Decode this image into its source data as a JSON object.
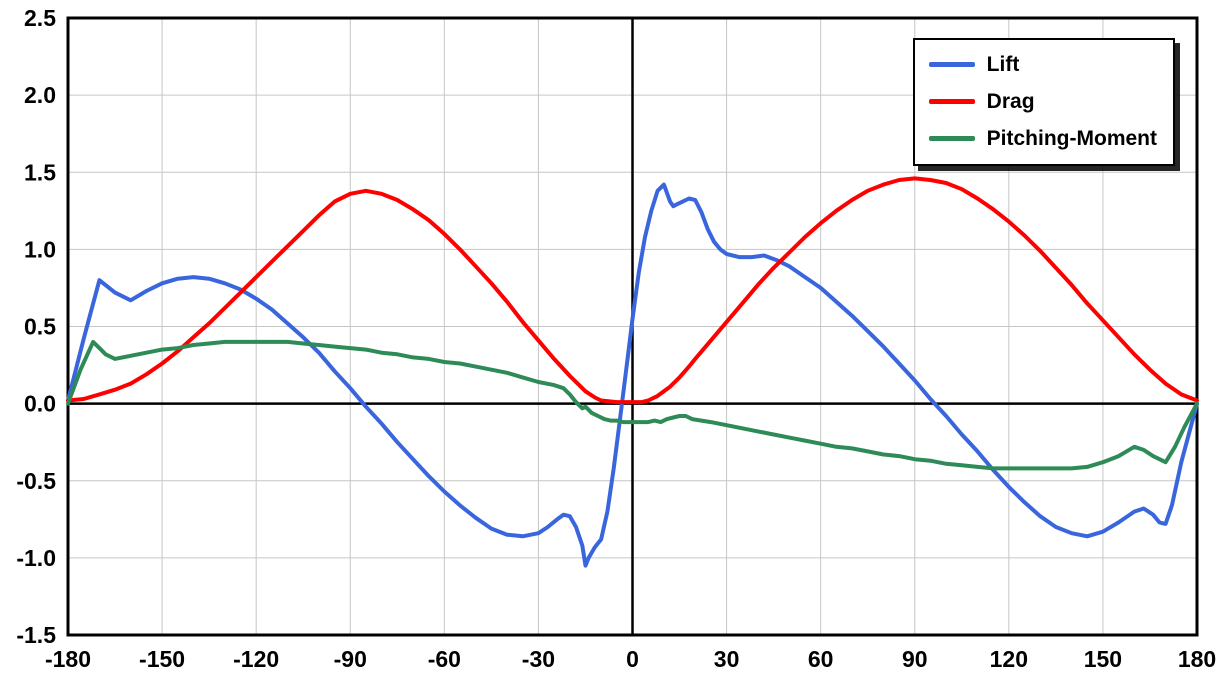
{
  "colors": {
    "grid": "#c6c6c6",
    "axis": "#000000",
    "background": "#ffffff",
    "lift": "#3A66DD",
    "drag": "#FF0000",
    "pitching_moment": "#2E8B57"
  },
  "chart_data": {
    "type": "line",
    "title": "",
    "xlabel": "",
    "ylabel": "",
    "xlim": [
      -180,
      180
    ],
    "ylim": [
      -1.5,
      2.5
    ],
    "x_ticks": [
      -180,
      -150,
      -120,
      -90,
      -60,
      -30,
      0,
      30,
      60,
      90,
      120,
      150,
      180
    ],
    "y_ticks": [
      -1.5,
      -1.0,
      -0.5,
      0.0,
      0.5,
      1.0,
      1.5,
      2.0,
      2.5
    ],
    "grid": true,
    "legend_position": "top-right",
    "series": [
      {
        "name": "Lift",
        "color": "#3A66DD",
        "x": [
          -180,
          -175,
          -170,
          -165,
          -160,
          -155,
          -150,
          -145,
          -140,
          -135,
          -130,
          -125,
          -120,
          -115,
          -110,
          -105,
          -100,
          -95,
          -90,
          -85,
          -80,
          -75,
          -70,
          -65,
          -60,
          -55,
          -50,
          -45,
          -40,
          -35,
          -30,
          -27,
          -24,
          -22,
          -20,
          -18,
          -16,
          -15,
          -14,
          -12,
          -10,
          -8,
          -6,
          -4,
          -2,
          0,
          2,
          4,
          6,
          8,
          10,
          12,
          13,
          14,
          16,
          18,
          20,
          22,
          24,
          26,
          28,
          30,
          34,
          38,
          42,
          46,
          50,
          55,
          60,
          65,
          70,
          75,
          80,
          85,
          90,
          95,
          100,
          105,
          110,
          115,
          120,
          125,
          130,
          135,
          140,
          145,
          150,
          155,
          160,
          163,
          166,
          168,
          170,
          172,
          175,
          180
        ],
        "y": [
          0.02,
          0.42,
          0.8,
          0.72,
          0.67,
          0.73,
          0.78,
          0.81,
          0.82,
          0.81,
          0.78,
          0.74,
          0.68,
          0.61,
          0.52,
          0.43,
          0.33,
          0.21,
          0.1,
          -0.02,
          -0.13,
          -0.25,
          -0.36,
          -0.47,
          -0.57,
          -0.66,
          -0.74,
          -0.81,
          -0.85,
          -0.86,
          -0.84,
          -0.8,
          -0.75,
          -0.72,
          -0.73,
          -0.8,
          -0.92,
          -1.05,
          -1.0,
          -0.93,
          -0.88,
          -0.7,
          -0.42,
          -0.1,
          0.22,
          0.55,
          0.85,
          1.08,
          1.25,
          1.38,
          1.42,
          1.31,
          1.28,
          1.29,
          1.31,
          1.33,
          1.32,
          1.24,
          1.13,
          1.05,
          1.0,
          0.97,
          0.95,
          0.95,
          0.96,
          0.93,
          0.89,
          0.82,
          0.75,
          0.66,
          0.57,
          0.47,
          0.37,
          0.26,
          0.15,
          0.03,
          -0.08,
          -0.2,
          -0.31,
          -0.43,
          -0.54,
          -0.64,
          -0.73,
          -0.8,
          -0.84,
          -0.86,
          -0.83,
          -0.77,
          -0.7,
          -0.68,
          -0.72,
          -0.77,
          -0.78,
          -0.66,
          -0.38,
          0.0
        ]
      },
      {
        "name": "Drag",
        "color": "#FF0000",
        "x": [
          -180,
          -175,
          -170,
          -165,
          -160,
          -155,
          -150,
          -145,
          -140,
          -135,
          -130,
          -125,
          -120,
          -115,
          -110,
          -105,
          -100,
          -95,
          -90,
          -85,
          -80,
          -75,
          -70,
          -65,
          -60,
          -55,
          -50,
          -45,
          -40,
          -35,
          -30,
          -25,
          -20,
          -15,
          -12,
          -10,
          -5,
          0,
          3,
          5,
          8,
          10,
          12,
          15,
          18,
          20,
          25,
          30,
          35,
          40,
          45,
          50,
          55,
          60,
          65,
          70,
          75,
          80,
          85,
          90,
          95,
          100,
          105,
          110,
          115,
          120,
          125,
          130,
          135,
          140,
          145,
          150,
          155,
          160,
          165,
          170,
          175,
          180
        ],
        "y": [
          0.02,
          0.03,
          0.06,
          0.09,
          0.13,
          0.19,
          0.26,
          0.34,
          0.43,
          0.52,
          0.62,
          0.72,
          0.82,
          0.92,
          1.02,
          1.12,
          1.22,
          1.31,
          1.36,
          1.38,
          1.36,
          1.32,
          1.26,
          1.19,
          1.1,
          1.0,
          0.89,
          0.78,
          0.66,
          0.53,
          0.41,
          0.29,
          0.18,
          0.08,
          0.04,
          0.02,
          0.01,
          0.01,
          0.01,
          0.02,
          0.05,
          0.08,
          0.11,
          0.17,
          0.24,
          0.29,
          0.41,
          0.53,
          0.65,
          0.77,
          0.88,
          0.98,
          1.08,
          1.17,
          1.25,
          1.32,
          1.38,
          1.42,
          1.45,
          1.46,
          1.45,
          1.43,
          1.39,
          1.33,
          1.26,
          1.18,
          1.09,
          0.99,
          0.88,
          0.77,
          0.65,
          0.54,
          0.43,
          0.32,
          0.22,
          0.13,
          0.06,
          0.02
        ]
      },
      {
        "name": "Pitching-Moment",
        "color": "#2E8B57",
        "x": [
          -180,
          -176,
          -172,
          -170,
          -168,
          -165,
          -160,
          -155,
          -150,
          -145,
          -140,
          -135,
          -130,
          -125,
          -120,
          -115,
          -110,
          -105,
          -100,
          -95,
          -90,
          -85,
          -80,
          -75,
          -70,
          -65,
          -60,
          -55,
          -50,
          -45,
          -40,
          -35,
          -30,
          -25,
          -22,
          -20,
          -18,
          -16,
          -15,
          -13,
          -11,
          -9,
          -7,
          -5,
          -3,
          0,
          3,
          5,
          7,
          9,
          11,
          13,
          15,
          17,
          19,
          22,
          25,
          30,
          35,
          40,
          45,
          50,
          55,
          60,
          65,
          70,
          75,
          80,
          85,
          90,
          95,
          100,
          105,
          110,
          115,
          120,
          125,
          130,
          135,
          140,
          145,
          150,
          155,
          160,
          163,
          166,
          170,
          173,
          176,
          180
        ],
        "y": [
          0.0,
          0.22,
          0.4,
          0.36,
          0.32,
          0.29,
          0.31,
          0.33,
          0.35,
          0.36,
          0.38,
          0.39,
          0.4,
          0.4,
          0.4,
          0.4,
          0.4,
          0.39,
          0.38,
          0.37,
          0.36,
          0.35,
          0.33,
          0.32,
          0.3,
          0.29,
          0.27,
          0.26,
          0.24,
          0.22,
          0.2,
          0.17,
          0.14,
          0.12,
          0.1,
          0.06,
          0.01,
          -0.03,
          -0.02,
          -0.06,
          -0.08,
          -0.1,
          -0.11,
          -0.11,
          -0.12,
          -0.12,
          -0.12,
          -0.12,
          -0.11,
          -0.12,
          -0.1,
          -0.09,
          -0.08,
          -0.08,
          -0.1,
          -0.11,
          -0.12,
          -0.14,
          -0.16,
          -0.18,
          -0.2,
          -0.22,
          -0.24,
          -0.26,
          -0.28,
          -0.29,
          -0.31,
          -0.33,
          -0.34,
          -0.36,
          -0.37,
          -0.39,
          -0.4,
          -0.41,
          -0.42,
          -0.42,
          -0.42,
          -0.42,
          -0.42,
          -0.42,
          -0.41,
          -0.38,
          -0.34,
          -0.28,
          -0.3,
          -0.34,
          -0.38,
          -0.28,
          -0.15,
          0.0
        ]
      }
    ]
  }
}
